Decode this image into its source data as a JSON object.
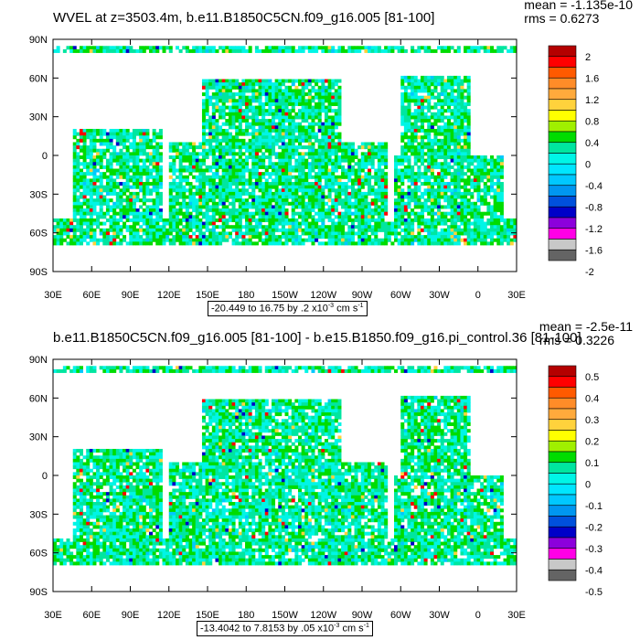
{
  "chart_data": [
    {
      "type": "heatmap",
      "title": "WVEL at z=3503.4m, b.e11.B1850C5CN.f09_g16.005 [81-100]",
      "mean_label": "mean = -1.135e-10",
      "rms_label": "rms = 0.6273",
      "range_label": "-20.449 to 16.75 by .2 x10",
      "range_exp": "-3",
      "range_units": " cm s",
      "range_units_exp": "-1",
      "x_ticks": [
        "30E",
        "60E",
        "90E",
        "120E",
        "150E",
        "180",
        "150W",
        "120W",
        "90W",
        "60W",
        "30W",
        "0",
        "30E"
      ],
      "y_ticks": [
        "90N",
        "60N",
        "30N",
        "0",
        "30S",
        "60S",
        "90S"
      ],
      "colorbar_labels": [
        "2",
        "1.6",
        "1.2",
        "0.8",
        "0.4",
        "0",
        "-0.4",
        "-0.8",
        "-1.2",
        "-1.6",
        "-2"
      ],
      "colorbar_colors": [
        "#b40000",
        "#ff0000",
        "#ff5a00",
        "#ff8c28",
        "#ffaa3c",
        "#ffd23c",
        "#ffff00",
        "#a0f000",
        "#00dc00",
        "#00e6a0",
        "#00f5e6",
        "#00e6ff",
        "#00c8ff",
        "#0096f0",
        "#0050dc",
        "#0000c8",
        "#8c00dc",
        "#ff00e6",
        "#c8c8c8",
        "#646464"
      ]
    },
    {
      "type": "heatmap",
      "title": "b.e11.B1850C5CN.f09_g16.005 [81-100] - b.e15.B1850.f09_g16.pi_control.36 [81-100]",
      "mean_label": "mean = -2.5e-11",
      "rms_label": "rms = 0.3226",
      "range_label": "-13.4042 to 7.8153 by .05 x10",
      "range_exp": "-3",
      "range_units": " cm s",
      "range_units_exp": "-1",
      "x_ticks": [
        "30E",
        "60E",
        "90E",
        "120E",
        "150E",
        "180",
        "150W",
        "120W",
        "90W",
        "60W",
        "30W",
        "0",
        "30E"
      ],
      "y_ticks": [
        "90N",
        "60N",
        "30N",
        "0",
        "30S",
        "60S",
        "90S"
      ],
      "colorbar_labels": [
        "0.5",
        "0.4",
        "0.3",
        "0.2",
        "0.1",
        "0",
        "-0.1",
        "-0.2",
        "-0.3",
        "-0.4",
        "-0.5"
      ],
      "colorbar_colors": [
        "#b40000",
        "#ff0000",
        "#ff5a00",
        "#ff8c28",
        "#ffaa3c",
        "#ffd23c",
        "#ffff00",
        "#a0f000",
        "#00dc00",
        "#00e6a0",
        "#00f5e6",
        "#00e6ff",
        "#00c8ff",
        "#0096f0",
        "#0050dc",
        "#0000c8",
        "#8c00dc",
        "#ff00e6",
        "#c8c8c8",
        "#646464"
      ]
    }
  ]
}
